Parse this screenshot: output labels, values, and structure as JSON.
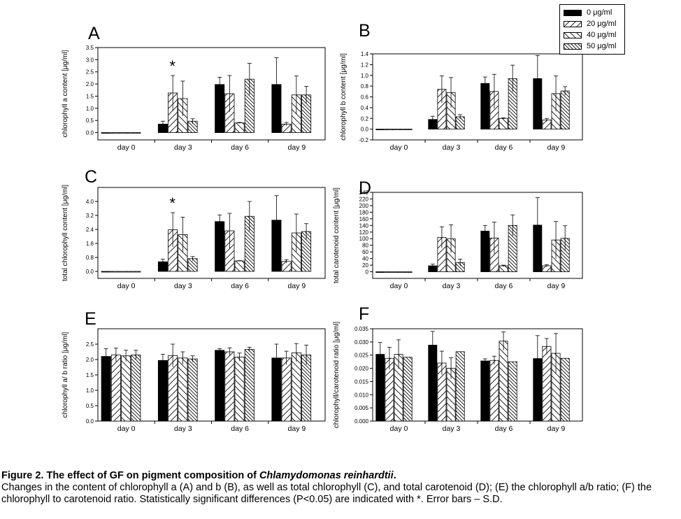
{
  "legend": [
    {
      "label": "0 μg/ml",
      "fill": "black"
    },
    {
      "label": "20 μg/ml",
      "fill": "fwd"
    },
    {
      "label": "40 μg/ml",
      "fill": "back"
    },
    {
      "label": "50 μg/ml",
      "fill": "backdense"
    }
  ],
  "caption": {
    "title_prefix": "Figure 2. The effect of GF on pigment composition of ",
    "title_species": "Chlamydomonas reinhardtii",
    "title_suffix": ".",
    "text": "Changes in the content of chlorophyll a (A) and b (B), as well as total chlorophyll (C), and total carotenoid (D); (E) the chlorophyll a/b ratio; (F) the chlorophyll to carotenoid ratio. Statistically significant differences (P<0.05) are indicated with *. Error bars – S.D."
  },
  "colors": {
    "bar_stroke": "#000000",
    "bar_fill_control": "#000000",
    "background": "#ffffff"
  },
  "chart_data": [
    {
      "panel": "A",
      "type": "bar",
      "ylabel": "chlorophyll a content [μg/ml]",
      "categories": [
        "day 0",
        "day 3",
        "day 6",
        "day 9"
      ],
      "ylim": [
        -0.3,
        3.5
      ],
      "yticks": [
        "0.0",
        "0.5",
        "1.0",
        "1.5",
        "2.0",
        "2.5",
        "3.0",
        "3.5"
      ],
      "series": [
        {
          "name": "0 μg/ml",
          "values": [
            0.0,
            0.35,
            1.98,
            1.98
          ],
          "errors": [
            0,
            0.12,
            0.3,
            1.1
          ]
        },
        {
          "name": "20 μg/ml",
          "values": [
            0.0,
            1.63,
            1.6,
            0.35
          ],
          "errors": [
            0,
            0.72,
            0.75,
            0.07
          ]
        },
        {
          "name": "40 μg/ml",
          "values": [
            0.0,
            1.4,
            0.4,
            1.55
          ],
          "errors": [
            0,
            0.72,
            0.02,
            0.78
          ]
        },
        {
          "name": "50 μg/ml",
          "values": [
            0.0,
            0.47,
            2.2,
            1.55
          ],
          "errors": [
            0,
            0.1,
            0.65,
            0.35
          ]
        }
      ],
      "annotations": [
        {
          "text": "*",
          "category": "day 3"
        }
      ]
    },
    {
      "panel": "B",
      "type": "bar",
      "ylabel": "chlorophyll b content [μg/ml]",
      "categories": [
        "day 0",
        "day 3",
        "day 6",
        "day 9"
      ],
      "ylim": [
        -0.2,
        1.4
      ],
      "yticks": [
        "-0.2",
        "0.0",
        "0.2",
        "0.4",
        "0.6",
        "0.8",
        "1.0",
        "1.2",
        "1.4"
      ],
      "series": [
        {
          "name": "0 μg/ml",
          "values": [
            0.0,
            0.18,
            0.85,
            0.94
          ],
          "errors": [
            0,
            0.06,
            0.12,
            0.43
          ]
        },
        {
          "name": "20 μg/ml",
          "values": [
            0.0,
            0.74,
            0.7,
            0.17
          ],
          "errors": [
            0,
            0.25,
            0.32,
            0.03
          ]
        },
        {
          "name": "40 μg/ml",
          "values": [
            0.0,
            0.68,
            0.2,
            0.66
          ],
          "errors": [
            0,
            0.28,
            0.01,
            0.33
          ]
        },
        {
          "name": "50 μg/ml",
          "values": [
            0.0,
            0.23,
            0.94,
            0.71
          ],
          "errors": [
            0,
            0.04,
            0.25,
            0.08
          ]
        }
      ]
    },
    {
      "panel": "C",
      "type": "bar",
      "ylabel": "total chlorophyll content [μg/ml]",
      "categories": [
        "day 0",
        "day 3",
        "day 6",
        "day 9"
      ],
      "ylim": [
        -0.4,
        4.8
      ],
      "yticks": [
        "0.0",
        "0.8",
        "1.6",
        "2.4",
        "3.2",
        "4.0"
      ],
      "series": [
        {
          "name": "0 μg/ml",
          "values": [
            0.0,
            0.55,
            2.85,
            2.93
          ],
          "errors": [
            0,
            0.15,
            0.38,
            1.4
          ]
        },
        {
          "name": "20 μg/ml",
          "values": [
            0.0,
            2.38,
            2.32,
            0.57
          ],
          "errors": [
            0,
            0.98,
            1.0,
            0.1
          ]
        },
        {
          "name": "40 μg/ml",
          "values": [
            0.0,
            2.1,
            0.6,
            2.2
          ],
          "errors": [
            0,
            1.0,
            0.02,
            1.08
          ]
        },
        {
          "name": "50 μg/ml",
          "values": [
            0.0,
            0.73,
            3.15,
            2.28
          ],
          "errors": [
            0,
            0.12,
            0.85,
            0.45
          ]
        }
      ],
      "annotations": [
        {
          "text": "*",
          "category": "day 3"
        }
      ]
    },
    {
      "panel": "D",
      "type": "bar",
      "ylabel": "total carotenoid content [μg/ml]",
      "categories": [
        "day 0",
        "day 3",
        "day 6",
        "day 9"
      ],
      "ylim": [
        -20,
        240
      ],
      "yticks": [
        "0",
        "20",
        "40",
        "60",
        "80",
        "100",
        "120",
        "140",
        "160",
        "180",
        "200",
        "220",
        "240"
      ],
      "series": [
        {
          "name": "0 μg/ml",
          "values": [
            0,
            18,
            123,
            141
          ],
          "errors": [
            0,
            5,
            17,
            83
          ]
        },
        {
          "name": "20 μg/ml",
          "values": [
            0,
            104,
            102,
            18
          ],
          "errors": [
            0,
            32,
            48,
            3
          ]
        },
        {
          "name": "40 μg/ml",
          "values": [
            0,
            100,
            18,
            96
          ],
          "errors": [
            0,
            42,
            2,
            56
          ]
        },
        {
          "name": "50 μg/ml",
          "values": [
            0,
            28,
            140,
            101
          ],
          "errors": [
            0,
            10,
            32,
            38
          ]
        }
      ]
    },
    {
      "panel": "E",
      "type": "bar",
      "ylabel": "chlorophyll a/ b ratio [μg/ml]",
      "categories": [
        "day 0",
        "day 3",
        "day 6",
        "day 9"
      ],
      "ylim": [
        0.0,
        3.0
      ],
      "yticks": [
        "0.0",
        "0.5",
        "1.0",
        "1.5",
        "2.0",
        "2.5"
      ],
      "series": [
        {
          "name": "0 μg/ml",
          "values": [
            2.1,
            1.97,
            2.3,
            2.05
          ],
          "errors": [
            0.25,
            0.2,
            0.05,
            0.45
          ]
        },
        {
          "name": "20 μg/ml",
          "values": [
            2.15,
            2.13,
            2.25,
            2.05
          ],
          "errors": [
            0.22,
            0.37,
            0.13,
            0.22
          ]
        },
        {
          "name": "40 μg/ml",
          "values": [
            2.12,
            2.05,
            2.08,
            2.22
          ],
          "errors": [
            0.18,
            0.2,
            0.13,
            0.3
          ]
        },
        {
          "name": "50 μg/ml",
          "values": [
            2.15,
            2.02,
            2.33,
            2.15
          ],
          "errors": [
            0.15,
            0.1,
            0.07,
            0.32
          ]
        }
      ]
    },
    {
      "panel": "F",
      "type": "bar",
      "ylabel": "chlorophyll/carotenoid ratio [μg/ml]",
      "categories": [
        "day 0",
        "day 3",
        "day 6",
        "day 9"
      ],
      "ylim": [
        0.0,
        0.035
      ],
      "yticks": [
        "0.000",
        "0.005",
        "0.010",
        "0.015",
        "0.020",
        "0.025",
        "0.030",
        "0.035"
      ],
      "series": [
        {
          "name": "0 μg/ml",
          "values": [
            0.0253,
            0.0288,
            0.0228,
            0.0237
          ],
          "errors": [
            0.0045,
            0.0052,
            0.0008,
            0.0087
          ]
        },
        {
          "name": "20 μg/ml",
          "values": [
            0.0238,
            0.022,
            0.023,
            0.0283
          ],
          "errors": [
            0.0042,
            0.0045,
            0.0016,
            0.003
          ]
        },
        {
          "name": "40 μg/ml",
          "values": [
            0.0253,
            0.02,
            0.0303,
            0.0257
          ],
          "errors": [
            0.0055,
            0.004,
            0.0035,
            0.0075
          ]
        },
        {
          "name": "50 μg/ml",
          "values": [
            0.0242,
            0.0263,
            0.0225,
            0.0238
          ],
          "errors": [
            0,
            0,
            0,
            0
          ]
        }
      ]
    }
  ]
}
